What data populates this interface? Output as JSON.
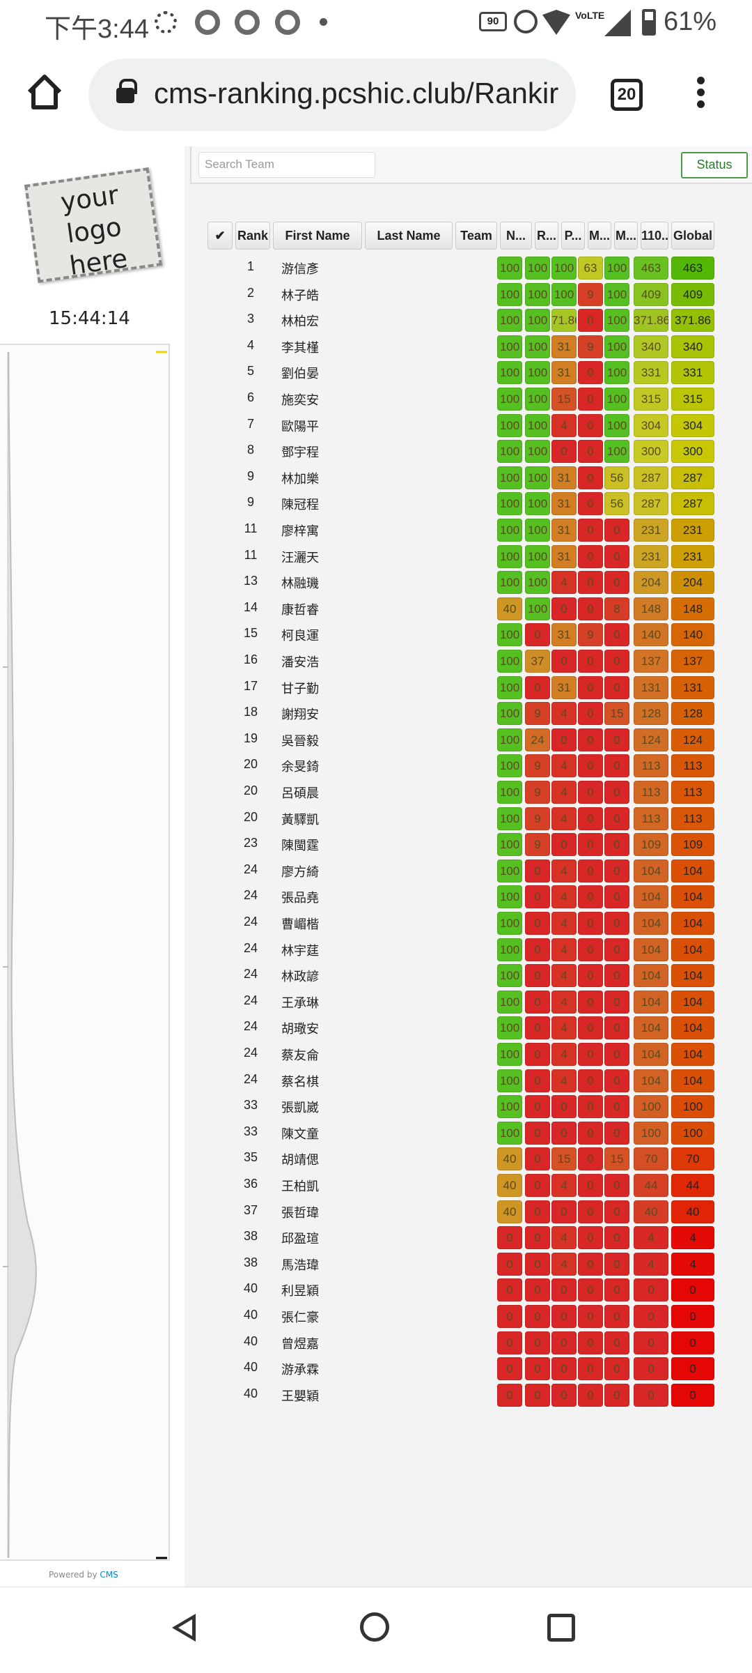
{
  "status_bar": {
    "time": "下午3:44",
    "battery": "61%",
    "refresh_rate": "90",
    "volte": "VoLTE"
  },
  "browser": {
    "url": "cms-ranking.pcshic.club/Rankir",
    "tab_count": "20"
  },
  "sidebar": {
    "logo_text": "your logo here",
    "clock": "15:44:14",
    "powered_by": "Powered by",
    "cms_link": "CMS"
  },
  "toolbar": {
    "search_placeholder": "Search Team",
    "status_button": "Status"
  },
  "table": {
    "headers": [
      "✔",
      "Rank",
      "First Name",
      "Last Name",
      "Team",
      "N...",
      "R...",
      "P...",
      "M...",
      "M...",
      "110...",
      "Global"
    ],
    "rows": [
      {
        "rank": "1",
        "name": "游信彥",
        "scores": [
          "100",
          "100",
          "100",
          "63",
          "100",
          "463"
        ],
        "global": "463"
      },
      {
        "rank": "2",
        "name": "林子皓",
        "scores": [
          "100",
          "100",
          "100",
          "9",
          "100",
          "409"
        ],
        "global": "409"
      },
      {
        "rank": "3",
        "name": "林柏宏",
        "scores": [
          "100",
          "100",
          "71.86",
          "0",
          "100",
          "371.86"
        ],
        "global": "371.86"
      },
      {
        "rank": "4",
        "name": "李其槿",
        "scores": [
          "100",
          "100",
          "31",
          "9",
          "100",
          "340"
        ],
        "global": "340"
      },
      {
        "rank": "5",
        "name": "劉伯晏",
        "scores": [
          "100",
          "100",
          "31",
          "0",
          "100",
          "331"
        ],
        "global": "331"
      },
      {
        "rank": "6",
        "name": "施奕安",
        "scores": [
          "100",
          "100",
          "15",
          "0",
          "100",
          "315"
        ],
        "global": "315"
      },
      {
        "rank": "7",
        "name": "歐陽平",
        "scores": [
          "100",
          "100",
          "4",
          "0",
          "100",
          "304"
        ],
        "global": "304"
      },
      {
        "rank": "8",
        "name": "鄧宇程",
        "scores": [
          "100",
          "100",
          "0",
          "0",
          "100",
          "300"
        ],
        "global": "300"
      },
      {
        "rank": "9",
        "name": "林加樂",
        "scores": [
          "100",
          "100",
          "31",
          "0",
          "56",
          "287"
        ],
        "global": "287"
      },
      {
        "rank": "9",
        "name": "陳冠程",
        "scores": [
          "100",
          "100",
          "31",
          "0",
          "56",
          "287"
        ],
        "global": "287"
      },
      {
        "rank": "11",
        "name": "廖梓寓",
        "scores": [
          "100",
          "100",
          "31",
          "0",
          "0",
          "231"
        ],
        "global": "231"
      },
      {
        "rank": "11",
        "name": "汪灑天",
        "scores": [
          "100",
          "100",
          "31",
          "0",
          "0",
          "231"
        ],
        "global": "231"
      },
      {
        "rank": "13",
        "name": "林融璣",
        "scores": [
          "100",
          "100",
          "4",
          "0",
          "0",
          "204"
        ],
        "global": "204"
      },
      {
        "rank": "14",
        "name": "康哲睿",
        "scores": [
          "40",
          "100",
          "0",
          "0",
          "8",
          "148"
        ],
        "global": "148"
      },
      {
        "rank": "15",
        "name": "柯良運",
        "scores": [
          "100",
          "0",
          "31",
          "9",
          "0",
          "140"
        ],
        "global": "140"
      },
      {
        "rank": "16",
        "name": "潘安浩",
        "scores": [
          "100",
          "37",
          "0",
          "0",
          "0",
          "137"
        ],
        "global": "137"
      },
      {
        "rank": "17",
        "name": "甘子勤",
        "scores": [
          "100",
          "0",
          "31",
          "0",
          "0",
          "131"
        ],
        "global": "131"
      },
      {
        "rank": "18",
        "name": "謝翔安",
        "scores": [
          "100",
          "9",
          "4",
          "0",
          "15",
          "128"
        ],
        "global": "128"
      },
      {
        "rank": "19",
        "name": "吳晉毅",
        "scores": [
          "100",
          "24",
          "0",
          "0",
          "0",
          "124"
        ],
        "global": "124"
      },
      {
        "rank": "20",
        "name": "余旻錡",
        "scores": [
          "100",
          "9",
          "4",
          "0",
          "0",
          "113"
        ],
        "global": "113"
      },
      {
        "rank": "20",
        "name": "呂碩晨",
        "scores": [
          "100",
          "9",
          "4",
          "0",
          "0",
          "113"
        ],
        "global": "113"
      },
      {
        "rank": "20",
        "name": "黃驛凱",
        "scores": [
          "100",
          "9",
          "4",
          "0",
          "0",
          "113"
        ],
        "global": "113"
      },
      {
        "rank": "23",
        "name": "陳閩霆",
        "scores": [
          "100",
          "9",
          "0",
          "0",
          "0",
          "109"
        ],
        "global": "109"
      },
      {
        "rank": "24",
        "name": "廖方綺",
        "scores": [
          "100",
          "0",
          "4",
          "0",
          "0",
          "104"
        ],
        "global": "104"
      },
      {
        "rank": "24",
        "name": "張品堯",
        "scores": [
          "100",
          "0",
          "4",
          "0",
          "0",
          "104"
        ],
        "global": "104"
      },
      {
        "rank": "24",
        "name": "曹嵋楷",
        "scores": [
          "100",
          "0",
          "4",
          "0",
          "0",
          "104"
        ],
        "global": "104"
      },
      {
        "rank": "24",
        "name": "林宇莛",
        "scores": [
          "100",
          "0",
          "4",
          "0",
          "0",
          "104"
        ],
        "global": "104"
      },
      {
        "rank": "24",
        "name": "林政諺",
        "scores": [
          "100",
          "0",
          "4",
          "0",
          "0",
          "104"
        ],
        "global": "104"
      },
      {
        "rank": "24",
        "name": "王承琳",
        "scores": [
          "100",
          "0",
          "4",
          "0",
          "0",
          "104"
        ],
        "global": "104"
      },
      {
        "rank": "24",
        "name": "胡璥安",
        "scores": [
          "100",
          "0",
          "4",
          "0",
          "0",
          "104"
        ],
        "global": "104"
      },
      {
        "rank": "24",
        "name": "蔡友侖",
        "scores": [
          "100",
          "0",
          "4",
          "0",
          "0",
          "104"
        ],
        "global": "104"
      },
      {
        "rank": "24",
        "name": "蔡名棋",
        "scores": [
          "100",
          "0",
          "4",
          "0",
          "0",
          "104"
        ],
        "global": "104"
      },
      {
        "rank": "33",
        "name": "張凱崴",
        "scores": [
          "100",
          "0",
          "0",
          "0",
          "0",
          "100"
        ],
        "global": "100"
      },
      {
        "rank": "33",
        "name": "陳文童",
        "scores": [
          "100",
          "0",
          "0",
          "0",
          "0",
          "100"
        ],
        "global": "100"
      },
      {
        "rank": "35",
        "name": "胡靖偲",
        "scores": [
          "40",
          "0",
          "15",
          "0",
          "15",
          "70"
        ],
        "global": "70"
      },
      {
        "rank": "36",
        "name": "王柏凱",
        "scores": [
          "40",
          "0",
          "4",
          "0",
          "0",
          "44"
        ],
        "global": "44"
      },
      {
        "rank": "37",
        "name": "張哲瑋",
        "scores": [
          "40",
          "0",
          "0",
          "0",
          "0",
          "40"
        ],
        "global": "40"
      },
      {
        "rank": "38",
        "name": "邱盈瑄",
        "scores": [
          "0",
          "0",
          "4",
          "0",
          "0",
          "4"
        ],
        "global": "4"
      },
      {
        "rank": "38",
        "name": "馬浩瑋",
        "scores": [
          "0",
          "0",
          "4",
          "0",
          "0",
          "4"
        ],
        "global": "4"
      },
      {
        "rank": "40",
        "name": "利昱穎",
        "scores": [
          "0",
          "0",
          "0",
          "0",
          "0",
          "0"
        ],
        "global": "0"
      },
      {
        "rank": "40",
        "name": "張仁豪",
        "scores": [
          "0",
          "0",
          "0",
          "0",
          "0",
          "0"
        ],
        "global": "0"
      },
      {
        "rank": "40",
        "name": "曾煜嘉",
        "scores": [
          "0",
          "0",
          "0",
          "0",
          "0",
          "0"
        ],
        "global": "0"
      },
      {
        "rank": "40",
        "name": "游承霖",
        "scores": [
          "0",
          "0",
          "0",
          "0",
          "0",
          "0"
        ],
        "global": "0"
      },
      {
        "rank": "40",
        "name": "王嬰穎",
        "scores": [
          "0",
          "0",
          "0",
          "0",
          "0",
          "0"
        ],
        "global": "0"
      }
    ]
  }
}
